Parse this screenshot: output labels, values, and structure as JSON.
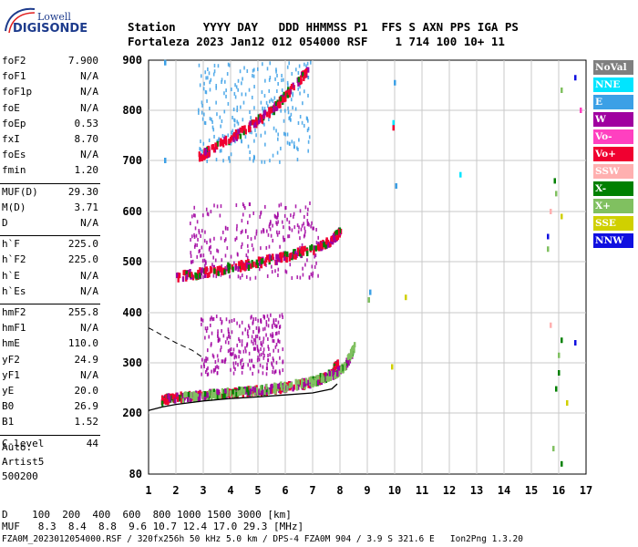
{
  "logo": {
    "line1": "Lowell",
    "line2": "DIGISONDE"
  },
  "header": {
    "line1": "Station    YYYY DAY   DDD HHMMSS P1  FFS S AXN PPS IGA PS",
    "line2": "Fortaleza 2023 Jan12 012 054000 RSF    1 714 100 10+ 11"
  },
  "params": [
    {
      "name": "foF2",
      "value": "7.900"
    },
    {
      "name": "foF1",
      "value": "N/A"
    },
    {
      "name": "foF1p",
      "value": "N/A"
    },
    {
      "name": "foE",
      "value": "N/A"
    },
    {
      "name": "foEp",
      "value": "0.53"
    },
    {
      "name": "fxI",
      "value": "8.70"
    },
    {
      "name": "foEs",
      "value": "N/A"
    },
    {
      "name": "fmin",
      "value": "1.20"
    },
    {
      "name": "MUF(D)",
      "value": "29.30"
    },
    {
      "name": "M(D)",
      "value": "3.71"
    },
    {
      "name": "D",
      "value": "N/A"
    },
    {
      "name": "h`F",
      "value": "225.0"
    },
    {
      "name": "h`F2",
      "value": "225.0"
    },
    {
      "name": "h`E",
      "value": "N/A"
    },
    {
      "name": "h`Es",
      "value": "N/A"
    },
    {
      "name": "hmF2",
      "value": "255.8"
    },
    {
      "name": "hmF1",
      "value": "N/A"
    },
    {
      "name": "hmE",
      "value": "110.0"
    },
    {
      "name": "yF2",
      "value": "24.9"
    },
    {
      "name": "yF1",
      "value": "N/A"
    },
    {
      "name": "yE",
      "value": "20.0"
    },
    {
      "name": "B0",
      "value": "26.9"
    },
    {
      "name": "B1",
      "value": "1.52"
    },
    {
      "name": "C-level",
      "value": "44"
    }
  ],
  "auto": {
    "line1": "Auto:",
    "line2": "Artist5",
    "line3": "500200"
  },
  "legend": [
    {
      "label": "NoVal",
      "color": "#7f7f7f"
    },
    {
      "label": "NNE",
      "color": "#00e5ff"
    },
    {
      "label": "E",
      "color": "#3ca0e6"
    },
    {
      "label": "W",
      "color": "#a000a0"
    },
    {
      "label": "Vo-",
      "color": "#ff40c0"
    },
    {
      "label": "Vo+",
      "color": "#f00030"
    },
    {
      "label": "SSW",
      "color": "#ffb0b0"
    },
    {
      "label": "X-",
      "color": "#008000"
    },
    {
      "label": "X+",
      "color": "#80c060"
    },
    {
      "label": "SSE",
      "color": "#d0d000"
    },
    {
      "label": "NNW",
      "color": "#1010e0"
    }
  ],
  "bottom": {
    "line1": "D    100  200  400  600  800 1000 1500 3000 [km]",
    "line2": "MUF   8.3  8.4  8.8  9.6 10.7 12.4 17.0 29.3 [MHz]",
    "line3": "FZA0M_2023012054000.RSF / 320fx256h 50 kHz 5.0 km / DPS-4 FZA0M 904 / 3.9 S 321.6 E   Ion2Png 1.3.20"
  },
  "chart_data": {
    "type": "scatter",
    "title": "",
    "xlabel": "",
    "ylabel": "",
    "xlim": [
      1,
      17
    ],
    "ylim": [
      80,
      900
    ],
    "xticks": [
      "1",
      "2",
      "3",
      "4",
      "5",
      "6",
      "7",
      "8",
      "9",
      "10",
      "11",
      "12",
      "13",
      "14",
      "15",
      "16",
      "17"
    ],
    "yticks": [
      "80",
      "200",
      "300",
      "400",
      "500",
      "600",
      "700",
      "800",
      "900"
    ],
    "y_tick_values": [
      80,
      200,
      300,
      400,
      500,
      600,
      700,
      800,
      900
    ],
    "grid": true,
    "traces": [
      {
        "name": "O-trace F2",
        "x": [
          1.4,
          2,
          3,
          4,
          5,
          6,
          7,
          7.6,
          7.9
        ],
        "y": [
          225,
          230,
          236,
          240,
          244,
          250,
          262,
          275,
          300
        ]
      },
      {
        "name": "X-trace F2",
        "x": [
          2.2,
          3,
          4,
          5,
          6,
          7,
          7.8,
          8.2,
          8.5
        ],
        "y": [
          230,
          235,
          240,
          246,
          252,
          262,
          276,
          298,
          330
        ]
      },
      {
        "name": "multihop 2F",
        "x": [
          2,
          3,
          4,
          5,
          6,
          7,
          7.6,
          8
        ],
        "y": [
          470,
          478,
          488,
          498,
          510,
          525,
          540,
          560
        ]
      },
      {
        "name": "multihop 3F",
        "x": [
          2.8,
          3.5,
          4.5,
          5.5,
          6,
          6.8
        ],
        "y": [
          705,
          730,
          760,
          800,
          830,
          880
        ]
      }
    ],
    "profile": {
      "x": [
        1,
        1.5,
        2,
        3,
        4,
        5,
        6,
        7,
        7.7,
        7.9
      ],
      "y": [
        205,
        212,
        217,
        224,
        229,
        232,
        236,
        240,
        248,
        258
      ]
    },
    "dashed": {
      "x": [
        1,
        1.5,
        2,
        2.6,
        3
      ],
      "y": [
        370,
        355,
        340,
        325,
        310
      ]
    },
    "spread": [
      {
        "x0": 2.9,
        "x1": 5.9,
        "y0": 280,
        "y1": 400,
        "color": "#a000a0"
      },
      {
        "x0": 2.5,
        "x1": 7.2,
        "y0": 470,
        "y1": 620,
        "color": "#a000a0"
      },
      {
        "x0": 2.8,
        "x1": 6.9,
        "y0": 700,
        "y1": 900,
        "color": "#3ca0e6"
      }
    ],
    "isolated": [
      {
        "x": 1.6,
        "y": 895,
        "color": "#3ca0e6"
      },
      {
        "x": 1.6,
        "y": 700,
        "color": "#3ca0e6"
      },
      {
        "x": 10,
        "y": 855,
        "color": "#3ca0e6"
      },
      {
        "x": 9.95,
        "y": 775,
        "color": "#00e5ff"
      },
      {
        "x": 9.95,
        "y": 765,
        "color": "#f00030"
      },
      {
        "x": 10.05,
        "y": 650,
        "color": "#3ca0e6"
      },
      {
        "x": 12.4,
        "y": 672,
        "color": "#00e5ff"
      },
      {
        "x": 16.1,
        "y": 840,
        "color": "#80c060"
      },
      {
        "x": 16.8,
        "y": 800,
        "color": "#ff40c0"
      },
      {
        "x": 16.6,
        "y": 865,
        "color": "#1010e0"
      },
      {
        "x": 15.85,
        "y": 660,
        "color": "#008000"
      },
      {
        "x": 15.9,
        "y": 635,
        "color": "#80c060"
      },
      {
        "x": 15.6,
        "y": 550,
        "color": "#1010e0"
      },
      {
        "x": 16.1,
        "y": 590,
        "color": "#d0d000"
      },
      {
        "x": 15.7,
        "y": 600,
        "color": "#ffb0b0"
      },
      {
        "x": 15.6,
        "y": 525,
        "color": "#80c060"
      },
      {
        "x": 9.1,
        "y": 440,
        "color": "#3ca0e6"
      },
      {
        "x": 9.05,
        "y": 425,
        "color": "#80c060"
      },
      {
        "x": 10.4,
        "y": 430,
        "color": "#d0d000"
      },
      {
        "x": 9.9,
        "y": 292,
        "color": "#d0d000"
      },
      {
        "x": 15.7,
        "y": 375,
        "color": "#ffb0b0"
      },
      {
        "x": 16.1,
        "y": 345,
        "color": "#008000"
      },
      {
        "x": 16.6,
        "y": 340,
        "color": "#1010e0"
      },
      {
        "x": 16.0,
        "y": 315,
        "color": "#80c060"
      },
      {
        "x": 16.0,
        "y": 280,
        "color": "#008000"
      },
      {
        "x": 15.9,
        "y": 248,
        "color": "#008000"
      },
      {
        "x": 16.3,
        "y": 220,
        "color": "#d0d000"
      },
      {
        "x": 15.8,
        "y": 130,
        "color": "#80c060"
      },
      {
        "x": 16.1,
        "y": 100,
        "color": "#008000"
      }
    ]
  }
}
